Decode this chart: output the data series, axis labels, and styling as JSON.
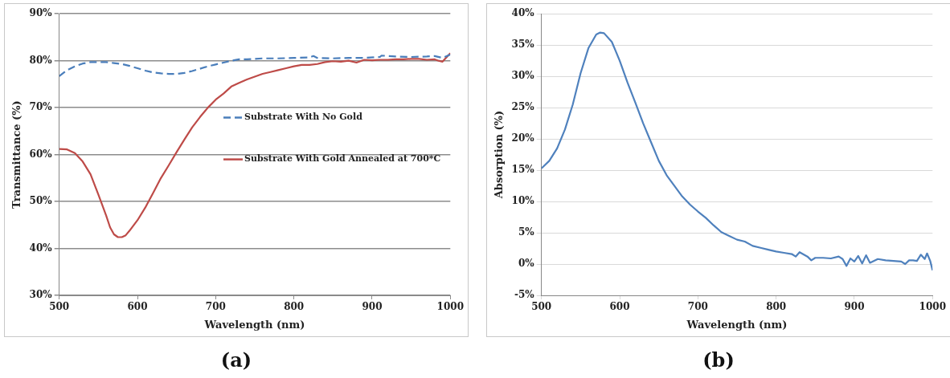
{
  "chart_data": [
    {
      "type": "line",
      "title": "(a)",
      "xlabel": "Wavelength (nm)",
      "ylabel": "Transmittance (%)",
      "xlim": [
        500,
        1000
      ],
      "xticks": [
        500,
        600,
        700,
        800,
        900,
        1000
      ],
      "ylim": [
        30,
        90
      ],
      "yticks": [
        {
          "value": 30,
          "label": "30%"
        },
        {
          "value": 40,
          "label": "40%"
        },
        {
          "value": 50,
          "label": "50%"
        },
        {
          "value": 60,
          "label": "60%"
        },
        {
          "value": 70,
          "label": "70%"
        },
        {
          "value": 80,
          "label": "80%"
        },
        {
          "value": 90,
          "label": "90%"
        }
      ],
      "grid": "y",
      "legend": "right",
      "series": [
        {
          "name": "Substrate With No Gold",
          "color": "#4a7ebb",
          "line_style": "dashed",
          "x": [
            500,
            510,
            520,
            530,
            540,
            550,
            560,
            570,
            580,
            590,
            600,
            610,
            620,
            630,
            640,
            650,
            660,
            670,
            680,
            690,
            700,
            710,
            720,
            730,
            740,
            760,
            780,
            800,
            820,
            825,
            830,
            850,
            870,
            890,
            910,
            912,
            930,
            950,
            970,
            980,
            990,
            1000
          ],
          "values": [
            76.7,
            78,
            78.8,
            79.4,
            79.7,
            79.7,
            79.7,
            79.5,
            79.3,
            78.9,
            78.4,
            77.9,
            77.5,
            77.3,
            77.2,
            77.2,
            77.4,
            77.8,
            78.3,
            78.8,
            79.2,
            79.6,
            80,
            80.3,
            80.3,
            80.5,
            80.5,
            80.6,
            80.7,
            81,
            80.6,
            80.5,
            80.6,
            80.6,
            80.8,
            81.1,
            80.9,
            80.8,
            80.9,
            81,
            80.6,
            81.3
          ]
        },
        {
          "name": "Substrate With Gold Annealed at 700*C",
          "color": "#be4b48",
          "line_style": "solid",
          "x": [
            500,
            510,
            520,
            530,
            540,
            550,
            560,
            565,
            570,
            575,
            580,
            585,
            590,
            600,
            610,
            620,
            630,
            640,
            650,
            660,
            670,
            680,
            690,
            700,
            710,
            720,
            730,
            740,
            750,
            760,
            770,
            780,
            790,
            800,
            810,
            820,
            830,
            840,
            850,
            860,
            870,
            880,
            890,
            900,
            910,
            920,
            930,
            940,
            950,
            960,
            970,
            980,
            985,
            990,
            1000
          ],
          "values": [
            61.2,
            61.1,
            60.3,
            58.5,
            55.8,
            51.5,
            47,
            44.5,
            43,
            42.4,
            42.4,
            42.8,
            43.8,
            46,
            48.7,
            51.8,
            55,
            57.7,
            60.5,
            63.2,
            65.8,
            68,
            70,
            71.7,
            73,
            74.5,
            75.3,
            76,
            76.6,
            77.2,
            77.6,
            78,
            78.4,
            78.8,
            79.1,
            79.1,
            79.3,
            79.7,
            79.9,
            79.8,
            80,
            79.6,
            80.2,
            80.1,
            80.2,
            80.2,
            80.3,
            80.3,
            80.4,
            80.4,
            80.2,
            80.3,
            80,
            79.8,
            81.6
          ]
        }
      ]
    },
    {
      "type": "line",
      "title": "(b)",
      "xlabel": "Wavelength (nm)",
      "ylabel": "Absorption (%)",
      "xlim": [
        500,
        1000
      ],
      "xticks": [
        500,
        600,
        700,
        800,
        900,
        1000
      ],
      "ylim": [
        -5,
        40
      ],
      "yticks": [
        {
          "value": -5,
          "label": "-5%"
        },
        {
          "value": 0,
          "label": "0%"
        },
        {
          "value": 5,
          "label": "5%"
        },
        {
          "value": 10,
          "label": "10%"
        },
        {
          "value": 15,
          "label": "15%"
        },
        {
          "value": 20,
          "label": "20%"
        },
        {
          "value": 25,
          "label": "25%"
        },
        {
          "value": 30,
          "label": "30%"
        },
        {
          "value": 35,
          "label": "35%"
        },
        {
          "value": 40,
          "label": "40%"
        }
      ],
      "grid": "y",
      "series": [
        {
          "color": "#4f81bd",
          "line_style": "solid",
          "x": [
            500,
            510,
            520,
            530,
            540,
            550,
            560,
            570,
            575,
            580,
            590,
            600,
            610,
            620,
            630,
            640,
            650,
            660,
            670,
            680,
            690,
            700,
            710,
            720,
            730,
            740,
            750,
            760,
            770,
            780,
            790,
            800,
            810,
            820,
            825,
            830,
            840,
            845,
            850,
            860,
            870,
            880,
            885,
            890,
            895,
            900,
            905,
            910,
            915,
            920,
            930,
            940,
            950,
            960,
            965,
            970,
            975,
            980,
            985,
            990,
            993,
            997,
            1000
          ],
          "values": [
            15.3,
            16.5,
            18.5,
            21.5,
            25.5,
            30.5,
            34.5,
            36.7,
            37,
            36.9,
            35.5,
            32.5,
            29,
            25.8,
            22.5,
            19.5,
            16.5,
            14.2,
            12.5,
            10.8,
            9.5,
            8.4,
            7.4,
            6.2,
            5.1,
            4.5,
            3.9,
            3.6,
            2.9,
            2.6,
            2.3,
            2,
            1.8,
            1.6,
            1.2,
            1.9,
            1.2,
            0.6,
            1,
            1,
            0.9,
            1.2,
            0.8,
            -0.3,
            0.9,
            0.4,
            1.3,
            0.1,
            1.4,
            0.2,
            0.8,
            0.6,
            0.5,
            0.4,
            0,
            0.6,
            0.6,
            0.5,
            1.5,
            0.8,
            1.7,
            0.5,
            -1
          ]
        }
      ]
    }
  ]
}
